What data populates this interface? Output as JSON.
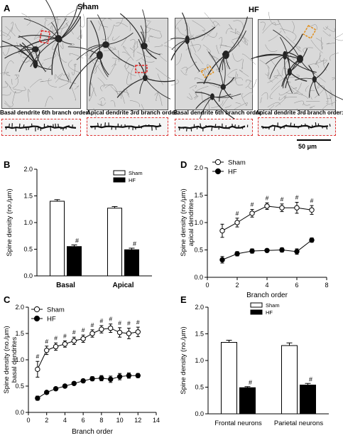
{
  "panel_a": {
    "letter": "A",
    "group_sham": "Sham",
    "group_hf": "HF",
    "captions": [
      "Basal dendrite 6th branch order:",
      "Apical dendrite 3rd branch order:",
      "Basal dendrite 6th branch order:",
      "Apical dendrite 3rd branch order:"
    ],
    "scale_bar": "50 μm",
    "box_colors": [
      "#e02020",
      "#e02020",
      "#e09020",
      "#e09020"
    ]
  },
  "chart_data": [
    {
      "panel": "B",
      "type": "bar",
      "ylabel": "Spine density (no./μm)",
      "ylim": [
        0,
        2.0
      ],
      "yticks": [
        "0.0",
        "0.5",
        "1.0",
        "1.5",
        "2.0"
      ],
      "categories": [
        "Basal",
        "Apical"
      ],
      "series": [
        {
          "name": "Sham",
          "values": [
            1.4,
            1.27
          ],
          "errors": [
            0.03,
            0.03
          ],
          "color": "#ffffff"
        },
        {
          "name": "HF",
          "values": [
            0.55,
            0.49
          ],
          "errors": [
            0.03,
            0.03
          ],
          "color": "#000000"
        }
      ],
      "annotations": [
        "#",
        "#"
      ],
      "legend": "top-right"
    },
    {
      "panel": "C",
      "type": "line",
      "ylabel": "Spine density (no./μm) basal dendrites",
      "xlabel": "Branch order",
      "xlim": [
        0,
        14
      ],
      "xticks": [
        "0",
        "2",
        "4",
        "6",
        "8",
        "10",
        "12",
        "14"
      ],
      "ylim": [
        0,
        2.0
      ],
      "yticks": [
        "0.0",
        "0.5",
        "1.0",
        "1.5",
        "2.0"
      ],
      "x": [
        1,
        2,
        3,
        4,
        5,
        6,
        7,
        8,
        9,
        10,
        11,
        12
      ],
      "series": [
        {
          "name": "Sham",
          "values": [
            0.82,
            1.18,
            1.25,
            1.3,
            1.36,
            1.4,
            1.5,
            1.58,
            1.6,
            1.52,
            1.5,
            1.53
          ],
          "errors": [
            0.15,
            0.08,
            0.07,
            0.06,
            0.07,
            0.07,
            0.07,
            0.07,
            0.08,
            0.09,
            0.1,
            0.09
          ],
          "marker": "open"
        },
        {
          "name": "HF",
          "values": [
            0.27,
            0.38,
            0.45,
            0.5,
            0.55,
            0.6,
            0.64,
            0.65,
            0.63,
            0.68,
            0.7,
            0.7
          ],
          "errors": [
            0.04,
            0.03,
            0.03,
            0.03,
            0.03,
            0.03,
            0.04,
            0.05,
            0.06,
            0.06,
            0.05,
            0.04
          ],
          "marker": "filled"
        }
      ],
      "annotations": [
        "#",
        "#",
        "#",
        "#",
        "#",
        "#",
        "#",
        "#",
        "#",
        "#",
        "#",
        "#"
      ],
      "legend": "top-left"
    },
    {
      "panel": "D",
      "type": "line",
      "ylabel": "Spine density (no./μm) apical dendrites",
      "xlabel": "Branch order",
      "xlim": [
        0,
        8
      ],
      "xticks": [
        "0",
        "2",
        "4",
        "6",
        "8"
      ],
      "ylim": [
        0,
        2.0
      ],
      "yticks": [
        "0.0",
        "0.5",
        "1.0",
        "1.5",
        "2.0"
      ],
      "x": [
        1,
        2,
        3,
        4,
        5,
        6,
        7
      ],
      "series": [
        {
          "name": "Sham",
          "values": [
            0.85,
            1.0,
            1.17,
            1.3,
            1.27,
            1.27,
            1.23
          ],
          "errors": [
            0.12,
            0.08,
            0.07,
            0.06,
            0.07,
            0.1,
            0.08
          ],
          "marker": "open"
        },
        {
          "name": "HF",
          "values": [
            0.32,
            0.43,
            0.48,
            0.49,
            0.5,
            0.47,
            0.68
          ],
          "errors": [
            0.06,
            0.04,
            0.04,
            0.03,
            0.04,
            0.05,
            0.04
          ],
          "marker": "filled"
        }
      ],
      "annotations": [
        "#",
        "#",
        "#",
        "#",
        "#",
        "#"
      ],
      "legend": "top-left"
    },
    {
      "panel": "E",
      "type": "bar",
      "ylabel": "Spine density (no./μm)",
      "ylim": [
        0,
        2.0
      ],
      "yticks": [
        "0.0",
        "0.5",
        "1.0",
        "1.5",
        "2.0"
      ],
      "categories": [
        "Frontal neurons",
        "Parietal neurons"
      ],
      "series": [
        {
          "name": "Sham",
          "values": [
            1.34,
            1.28
          ],
          "errors": [
            0.04,
            0.05
          ],
          "color": "#ffffff"
        },
        {
          "name": "HF",
          "values": [
            0.49,
            0.54
          ],
          "errors": [
            0.02,
            0.03
          ],
          "color": "#000000"
        }
      ],
      "annotations": [
        "#",
        "#"
      ],
      "legend": "top-right"
    }
  ]
}
